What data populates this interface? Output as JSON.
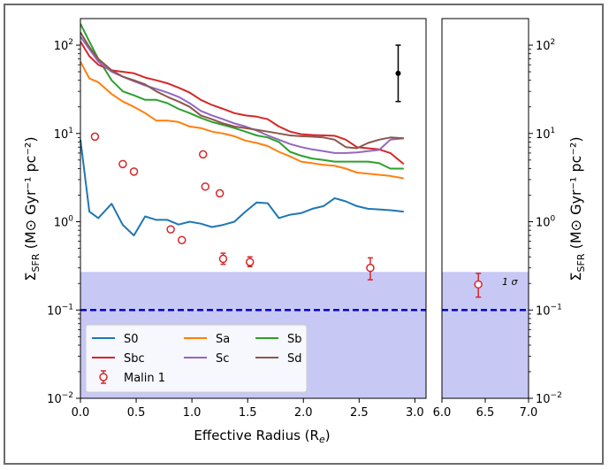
{
  "chart_data": [
    {
      "panel": "main",
      "type": "line",
      "xlabel_main": "Effective Radius (R",
      "xlabel_sub": "e",
      "xlabel_close": ")",
      "ylabel_left": "Σ",
      "ylabel_left_sub": "SFR",
      "ylabel_unit": "(M⊙ Gyr⁻¹ pc⁻²)",
      "yscale": "log",
      "ylim": [
        0.01,
        200
      ],
      "xlim": [
        0.0,
        3.1
      ],
      "xticks": [
        "0.0",
        "0.5",
        "1.0",
        "1.5",
        "2.0",
        "2.5",
        "3.0"
      ],
      "yticks": [
        {
          "base": "10",
          "exp": "−2",
          "value": 0.01
        },
        {
          "base": "10",
          "exp": "−1",
          "value": 0.1
        },
        {
          "base": "10",
          "exp": "0",
          "value": 1
        },
        {
          "base": "10",
          "exp": "1",
          "value": 10
        },
        {
          "base": "10",
          "exp": "2",
          "value": 100
        }
      ],
      "threshold_band": {
        "ymin": 0.01,
        "ymax": 0.27,
        "color": "#c8c8f5"
      },
      "threshold_line": {
        "y": 0.1,
        "color": "#0000cc",
        "style": "dashed"
      },
      "series": [
        {
          "name": "S0",
          "color": "#1f77b4",
          "x": [
            0.0,
            0.08,
            0.16,
            0.28,
            0.38,
            0.48,
            0.58,
            0.68,
            0.78,
            0.88,
            0.98,
            1.08,
            1.18,
            1.28,
            1.38,
            1.48,
            1.58,
            1.68,
            1.78,
            1.88,
            1.98,
            2.08,
            2.18,
            2.28,
            2.38,
            2.48,
            2.58,
            2.68,
            2.78,
            2.9
          ],
          "y": [
            8.5,
            1.3,
            1.1,
            1.6,
            0.92,
            0.7,
            1.15,
            1.05,
            1.05,
            0.93,
            1.0,
            0.95,
            0.87,
            0.92,
            1.0,
            1.3,
            1.65,
            1.62,
            1.1,
            1.2,
            1.25,
            1.4,
            1.5,
            1.85,
            1.7,
            1.5,
            1.4,
            1.38,
            1.35,
            1.3
          ]
        },
        {
          "name": "Sa",
          "color": "#ff7f0e",
          "x": [
            0.0,
            0.08,
            0.16,
            0.28,
            0.38,
            0.48,
            0.58,
            0.68,
            0.78,
            0.88,
            0.98,
            1.08,
            1.18,
            1.28,
            1.38,
            1.48,
            1.58,
            1.68,
            1.78,
            1.88,
            1.98,
            2.08,
            2.18,
            2.28,
            2.38,
            2.48,
            2.58,
            2.68,
            2.78,
            2.9
          ],
          "y": [
            65,
            42,
            38,
            28,
            23,
            20,
            17,
            14,
            14,
            13.5,
            12,
            11.5,
            10.5,
            10,
            9.3,
            8.3,
            7.8,
            7.2,
            6.2,
            5.5,
            4.8,
            4.6,
            4.4,
            4.3,
            4.0,
            3.6,
            3.5,
            3.4,
            3.3,
            3.1
          ]
        },
        {
          "name": "Sb",
          "color": "#2ca02c",
          "x": [
            0.0,
            0.08,
            0.16,
            0.28,
            0.38,
            0.48,
            0.58,
            0.68,
            0.78,
            0.88,
            0.98,
            1.08,
            1.18,
            1.28,
            1.38,
            1.48,
            1.58,
            1.68,
            1.78,
            1.88,
            1.98,
            2.08,
            2.18,
            2.28,
            2.38,
            2.48,
            2.58,
            2.68,
            2.78,
            2.9
          ],
          "y": [
            175,
            110,
            70,
            40,
            30,
            27,
            24,
            24,
            22,
            19,
            17,
            15,
            13.5,
            12.5,
            11.5,
            10.5,
            9.5,
            9.0,
            8.0,
            6.2,
            5.6,
            5.2,
            5.0,
            4.8,
            4.8,
            4.8,
            4.8,
            4.6,
            4.0,
            4.0
          ]
        },
        {
          "name": "Sbc",
          "color": "#d62728",
          "x": [
            0.0,
            0.08,
            0.16,
            0.28,
            0.38,
            0.48,
            0.58,
            0.68,
            0.78,
            0.88,
            0.98,
            1.08,
            1.18,
            1.28,
            1.38,
            1.48,
            1.58,
            1.68,
            1.78,
            1.88,
            1.98,
            2.08,
            2.18,
            2.28,
            2.38,
            2.48,
            2.58,
            2.68,
            2.78,
            2.9
          ],
          "y": [
            110,
            75,
            60,
            52,
            50,
            48,
            43,
            40,
            37,
            33,
            29,
            24,
            21,
            19,
            17,
            16,
            15.5,
            14.5,
            12,
            10.5,
            9.8,
            9.6,
            9.5,
            9.4,
            8.5,
            7.0,
            6.8,
            6.6,
            6.0,
            4.5
          ]
        },
        {
          "name": "Sc",
          "color": "#9467bd",
          "x": [
            0.0,
            0.08,
            0.16,
            0.28,
            0.38,
            0.48,
            0.58,
            0.68,
            0.78,
            0.88,
            0.98,
            1.08,
            1.18,
            1.28,
            1.38,
            1.48,
            1.58,
            1.68,
            1.78,
            1.88,
            1.98,
            2.08,
            2.18,
            2.28,
            2.38,
            2.48,
            2.58,
            2.68,
            2.78,
            2.9
          ],
          "y": [
            125,
            90,
            65,
            50,
            44,
            39,
            35,
            32,
            29,
            26,
            22,
            18,
            16,
            14.5,
            13,
            12,
            10.8,
            9.5,
            8.5,
            7.6,
            7.0,
            6.6,
            6.3,
            6.0,
            6.0,
            6.1,
            6.3,
            6.5,
            8.5,
            8.8
          ]
        },
        {
          "name": "Sd",
          "color": "#8c564b",
          "x": [
            0.0,
            0.08,
            0.16,
            0.28,
            0.38,
            0.48,
            0.58,
            0.68,
            0.78,
            0.88,
            0.98,
            1.08,
            1.18,
            1.28,
            1.38,
            1.48,
            1.58,
            1.68,
            1.78,
            1.88,
            1.98,
            2.08,
            2.18,
            2.28,
            2.38,
            2.48,
            2.58,
            2.68,
            2.78,
            2.9
          ],
          "y": [
            140,
            95,
            70,
            52,
            44,
            40,
            36,
            30,
            26,
            23,
            20,
            16,
            14.5,
            13,
            12,
            11.5,
            11,
            10.5,
            10,
            9.5,
            9.3,
            9.2,
            9.0,
            8.5,
            7.0,
            6.8,
            7.8,
            8.5,
            9.0,
            8.8
          ]
        }
      ],
      "malin1": {
        "name": "Malin 1",
        "color": "#d62728",
        "points": [
          {
            "x": 0.13,
            "y": 9.2
          },
          {
            "x": 0.38,
            "y": 4.5
          },
          {
            "x": 0.48,
            "y": 3.7
          },
          {
            "x": 0.81,
            "y": 0.82
          },
          {
            "x": 0.91,
            "y": 0.62
          },
          {
            "x": 1.1,
            "y": 5.8
          },
          {
            "x": 1.12,
            "y": 2.5
          },
          {
            "x": 1.25,
            "y": 2.1
          },
          {
            "x": 1.28,
            "y": 0.38,
            "ylo": 0.33,
            "yhi": 0.44
          },
          {
            "x": 1.52,
            "y": 0.35,
            "ylo": 0.31,
            "yhi": 0.4
          },
          {
            "x": 2.6,
            "y": 0.3,
            "ylo": 0.22,
            "yhi": 0.39
          }
        ]
      },
      "reference_errorbar": {
        "x": 2.85,
        "y": 48,
        "ylo": 23,
        "yhi": 100,
        "color": "#000000"
      },
      "legend": {
        "placement": "lower-left",
        "entries": [
          {
            "label": "S0",
            "color": "#1f77b4",
            "kind": "line"
          },
          {
            "label": "Sa",
            "color": "#ff7f0e",
            "kind": "line"
          },
          {
            "label": "Sb",
            "color": "#2ca02c",
            "kind": "line"
          },
          {
            "label": "Sbc",
            "color": "#d62728",
            "kind": "line"
          },
          {
            "label": "Sc",
            "color": "#9467bd",
            "kind": "line"
          },
          {
            "label": "Sd",
            "color": "#8c564b",
            "kind": "line"
          },
          {
            "label": "Malin 1",
            "color": "#d62728",
            "kind": "marker"
          }
        ]
      }
    },
    {
      "panel": "right",
      "type": "scatter",
      "xlim": [
        6.0,
        7.0
      ],
      "xticks": [
        "6.0",
        "6.5",
        "7.0"
      ],
      "ylabel_right": "Σ",
      "ylabel_right_sub": "SFR",
      "ylabel_unit": "(M⊙ Gyr⁻¹ pc⁻²)",
      "threshold_band": {
        "ymin": 0.01,
        "ymax": 0.27,
        "color": "#c8c8f5"
      },
      "threshold_line": {
        "y": 0.1,
        "color": "#0000cc",
        "style": "dashed"
      },
      "points": [
        {
          "x": 6.42,
          "y": 0.195,
          "ylo": 0.14,
          "yhi": 0.26
        }
      ],
      "annotation": "1 σ"
    }
  ]
}
